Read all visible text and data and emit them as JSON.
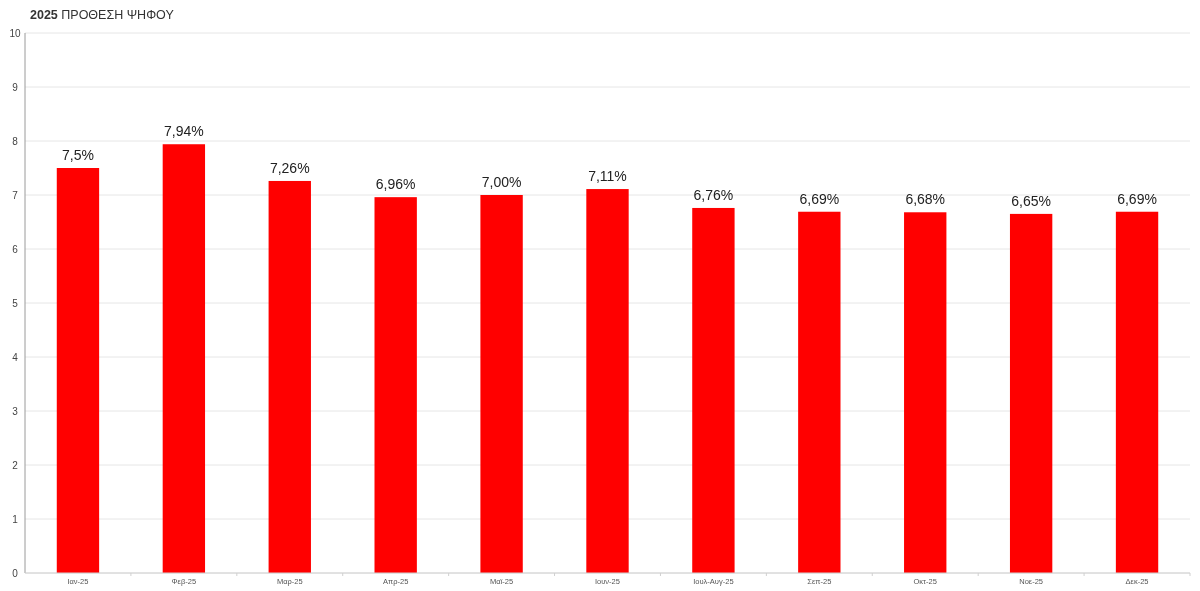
{
  "chart_data": {
    "type": "bar",
    "title": "2025 ΠΡΟΘΕΣΗ ΨΗΦΟΥ",
    "categories": [
      "Ιαν-25",
      "Φεβ-25",
      "Μαρ-25",
      "Απρ-25",
      "Μαϊ-25",
      "Ιουν-25",
      "Ιουλ-Αυγ-25",
      "Σεπ-25",
      "Οκτ-25",
      "Νοε-25",
      "Δεκ-25"
    ],
    "values": [
      7.5,
      7.94,
      7.26,
      6.96,
      7.0,
      7.11,
      6.76,
      6.69,
      6.68,
      6.65,
      6.69
    ],
    "value_labels": [
      "7,5%",
      "7,94%",
      "7,26%",
      "6,96%",
      "7,00%",
      "7,11%",
      "6,76%",
      "6,69%",
      "6,68%",
      "6,65%",
      "6,69%"
    ],
    "color": "#ff0000",
    "ylim": [
      0,
      10
    ],
    "yticks": [
      0,
      1,
      2,
      3,
      4,
      5,
      6,
      7,
      8,
      9,
      10
    ],
    "grid": "y"
  }
}
